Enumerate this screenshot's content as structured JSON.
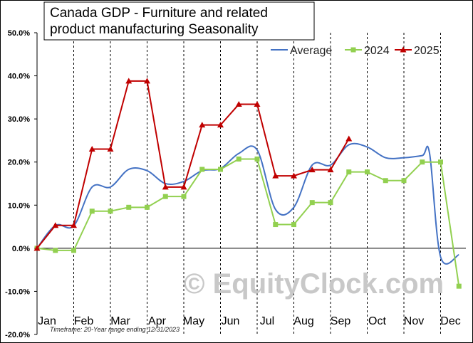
{
  "chart_data": {
    "type": "line",
    "title_lines": [
      "Canada GDP - Furniture and related",
      "product manufacturing  Seasonality"
    ],
    "ylim": [
      -20,
      50
    ],
    "y_ticks": [
      -20,
      -10,
      0,
      10,
      20,
      30,
      40,
      50
    ],
    "y_tick_labels": [
      "-20.0%",
      "-10.0%",
      "0.0%",
      "10.0%",
      "20.0%",
      "30.0%",
      "40.0%",
      "50.0%"
    ],
    "months": [
      "Jan",
      "Feb",
      "Mar",
      "Apr",
      "May",
      "Jun",
      "Jul",
      "Aug",
      "Sep",
      "Oct",
      "Nov",
      "Dec"
    ],
    "grid": "vertical dashed",
    "legend_position": "top-right",
    "series": [
      {
        "name": "Average",
        "color": "#4472c4",
        "marker": "none",
        "x": [
          0.0,
          0.5,
          1.0,
          1.5,
          2.0,
          2.5,
          3.0,
          3.5,
          4.0,
          4.5,
          5.0,
          5.5,
          6.0,
          6.5,
          7.0,
          7.5,
          8.0,
          8.5,
          9.0,
          9.5,
          10.0,
          10.5,
          10.7,
          11.0,
          11.5
        ],
        "values": [
          0,
          5.3,
          5.2,
          14.2,
          14.2,
          18.3,
          18.0,
          15.0,
          15.5,
          18.0,
          18.5,
          22.0,
          22.8,
          9.0,
          9.5,
          19.3,
          19.3,
          24.0,
          23.5,
          21.0,
          21.0,
          21.5,
          22.0,
          -2.0,
          -1.5
        ]
      },
      {
        "name": "2024",
        "color": "#92d050",
        "marker": "square",
        "x": [
          0.0,
          0.5,
          1.0,
          1.5,
          2.0,
          2.5,
          3.0,
          3.5,
          4.0,
          4.5,
          5.0,
          5.5,
          6.0,
          6.5,
          7.0,
          7.5,
          8.0,
          8.5,
          9.0,
          9.5,
          10.0,
          10.5,
          11.0,
          11.5
        ],
        "values": [
          0,
          -0.5,
          -0.5,
          8.6,
          8.6,
          9.5,
          9.5,
          12.0,
          12.0,
          18.3,
          18.3,
          20.7,
          20.7,
          5.5,
          5.5,
          10.6,
          10.6,
          17.7,
          17.7,
          15.7,
          15.7,
          20.0,
          20.0,
          -8.8
        ]
      },
      {
        "name": "2025",
        "color": "#c00000",
        "marker": "triangle",
        "x": [
          0.0,
          0.5,
          1.0,
          1.5,
          2.0,
          2.5,
          3.0,
          3.5,
          4.0,
          4.5,
          5.0,
          5.5,
          6.0,
          6.5,
          7.0,
          7.5,
          8.0,
          8.5
        ],
        "values": [
          0,
          5.3,
          5.3,
          23.0,
          23.0,
          38.8,
          38.8,
          14.2,
          14.2,
          28.6,
          28.6,
          33.4,
          33.4,
          16.8,
          16.8,
          18.2,
          18.2,
          25.4
        ]
      }
    ],
    "footnote": "Timeframe: 20-Year range ending 12/31/2023",
    "watermark": "© EquityClock.com",
    "colors": {
      "background": "#ffffff",
      "grid": "#000000",
      "frame": "#000000"
    }
  }
}
